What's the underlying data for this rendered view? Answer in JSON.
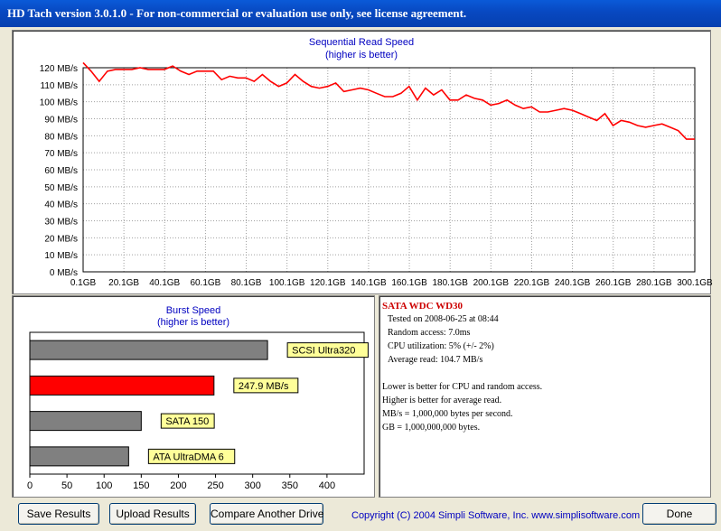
{
  "window": {
    "title": "HD Tach version 3.0.1.0  - For non-commercial or evaluation use only, see license agreement."
  },
  "sequential": {
    "title": "Sequential Read Speed",
    "subtitle": "(higher is better)"
  },
  "burst": {
    "title": "Burst Speed",
    "subtitle": "(higher is better)"
  },
  "info": {
    "drive": "SATA WDC WD30",
    "tested": "Tested on 2008-06-25 at 08:44",
    "random_access": "Random access: 7.0ms",
    "cpu": "CPU utilization: 5% (+/- 2%)",
    "avg_read": "Average read: 104.7 MB/s",
    "note1": "Lower is better for CPU and random access.",
    "note2": "Higher is better for average read.",
    "note3": "MB/s = 1,000,000 bytes per second.",
    "note4": "GB = 1,000,000,000 bytes."
  },
  "buttons": {
    "save": "Save Results",
    "upload": "Upload Results",
    "compare": "Compare Another Drive",
    "done": "Done"
  },
  "footer": {
    "copyright": "Copyright (C) 2004 Simpli Software, Inc. www.simplisoftware.com"
  },
  "colors": {
    "line": "#ff0000",
    "highlight_bar": "#ff0000",
    "ref_bar": "#808080",
    "label_bg": "#ffff99",
    "accent_text": "#0000c0"
  },
  "chart_data": [
    {
      "type": "line",
      "title": "Sequential Read Speed",
      "subtitle": "(higher is better)",
      "ylim": [
        0,
        120
      ],
      "y_ticks": [
        "0 MB/s",
        "10 MB/s",
        "20 MB/s",
        "30 MB/s",
        "40 MB/s",
        "50 MB/s",
        "60 MB/s",
        "70 MB/s",
        "80 MB/s",
        "90 MB/s",
        "100 MB/s",
        "110 MB/s",
        "120 MB/s"
      ],
      "x_ticks": [
        "0.1GB",
        "20.1GB",
        "40.1GB",
        "60.1GB",
        "80.1GB",
        "100.1GB",
        "120.1GB",
        "140.1GB",
        "160.1GB",
        "180.1GB",
        "200.1GB",
        "220.1GB",
        "240.1GB",
        "260.1GB",
        "280.1GB",
        "300.1GB"
      ],
      "xlim": [
        0.1,
        300.1
      ],
      "grid": true,
      "x": [
        0.1,
        4,
        8,
        12,
        16,
        20,
        24,
        28,
        32,
        36,
        40,
        44,
        48,
        52,
        56,
        60,
        64,
        68,
        72,
        76,
        80,
        84,
        88,
        92,
        96,
        100,
        104,
        108,
        112,
        116,
        120,
        124,
        128,
        132,
        136,
        140,
        144,
        148,
        152,
        156,
        160,
        164,
        168,
        172,
        176,
        180,
        184,
        188,
        192,
        196,
        200,
        204,
        208,
        212,
        216,
        220,
        224,
        228,
        232,
        236,
        240,
        244,
        248,
        252,
        256,
        260,
        264,
        268,
        272,
        276,
        280,
        284,
        288,
        292,
        296,
        300.1
      ],
      "y": [
        123,
        118,
        112,
        118,
        119,
        119,
        119,
        120,
        119,
        119,
        119,
        121,
        118,
        116,
        118,
        118,
        118,
        113,
        115,
        114,
        114,
        112,
        116,
        112,
        109,
        111,
        116,
        112,
        109,
        108,
        109,
        111,
        106,
        107,
        108,
        107,
        105,
        103,
        103,
        105,
        109,
        101,
        108,
        104,
        107,
        101,
        101,
        104,
        102,
        101,
        98,
        99,
        101,
        98,
        96,
        97,
        94,
        94,
        95,
        96,
        95,
        93,
        91,
        89,
        93,
        86,
        89,
        88,
        86,
        85,
        86,
        87,
        85,
        83,
        78,
        78
      ]
    },
    {
      "type": "bar",
      "title": "Burst Speed",
      "subtitle": "(higher is better)",
      "orientation": "horizontal",
      "xlim": [
        0,
        450
      ],
      "x_ticks": [
        "0",
        "50",
        "100",
        "150",
        "200",
        "250",
        "300",
        "350",
        "400"
      ],
      "categories": [
        "SCSI Ultra320",
        "247.9 MB/s",
        "SATA 150",
        "ATA UltraDMA 6"
      ],
      "values": [
        320,
        247.9,
        150,
        133
      ],
      "highlight_index": 1
    }
  ]
}
